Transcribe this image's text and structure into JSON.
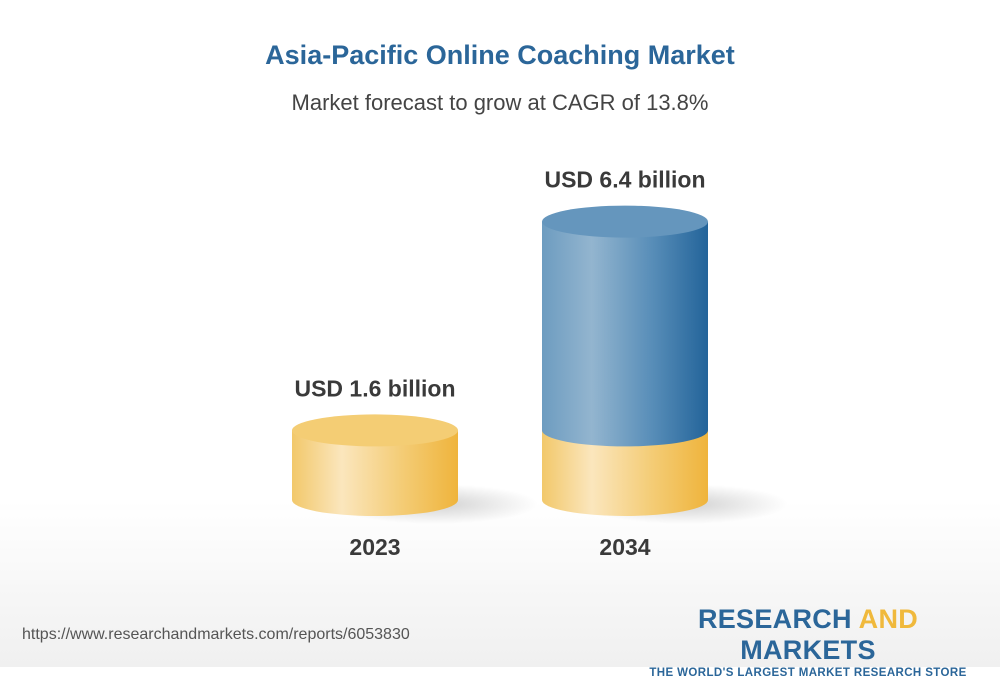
{
  "chart_data": {
    "type": "bar",
    "style": "3d-cylinder",
    "title": "Asia-Pacific Online Coaching Market",
    "subtitle": "Market forecast to grow at CAGR of 13.8%",
    "categories": [
      "2023",
      "2034"
    ],
    "values": [
      1.6,
      6.4
    ],
    "data_labels": [
      "USD 1.6 billion",
      "USD 6.4 billion"
    ],
    "unit": "USD billion",
    "grid": false,
    "colors": {
      "base": "#f3c45e",
      "growth": "#2a6699"
    }
  },
  "footer": {
    "url": "https://www.researchandmarkets.com/reports/6053830",
    "logo_part1": "RESEARCH ",
    "logo_part2": "AND",
    "logo_part3": " MARKETS",
    "tagline": "THE WORLD'S LARGEST MARKET RESEARCH STORE"
  }
}
